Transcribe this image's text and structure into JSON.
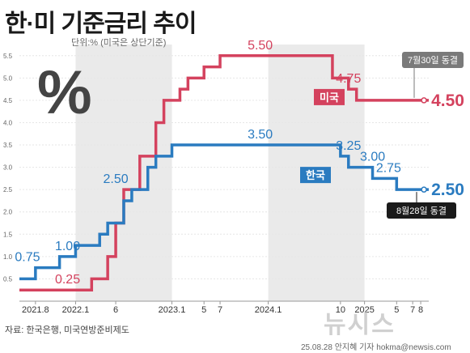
{
  "title": "한·미 기준금리 추이",
  "unit_note": "단위:% (미국은 상단기준)",
  "source": "자료: 한국은행, 미국연방준비제도",
  "credit": "25.08.28 안지혜 기자 hokma@newsis.com",
  "watermark": "뉴시스",
  "percent_symbol": "%",
  "colors": {
    "us": "#d4425e",
    "kr": "#2a7bc0",
    "shade": "#d9d9d9",
    "bg": "#ffffff"
  },
  "chart_data": {
    "type": "line",
    "step": true,
    "title": "한·미 기준금리 추이",
    "ylim": [
      0,
      5.75
    ],
    "yticks": [
      "0.5",
      "1.0",
      "1.5",
      "2.0",
      "2.5",
      "3.0",
      "3.5",
      "4.0",
      "4.5",
      "5.0",
      "5.5"
    ],
    "xticks": [
      "2021.8",
      "2022.1",
      "6",
      "2023.1",
      "5",
      "7",
      "2024.1",
      "10",
      "2025",
      "5",
      "7",
      "8"
    ],
    "xtick_positions": [
      "2021-08",
      "2022-01",
      "2022-06",
      "2023-01",
      "2023-05",
      "2023-07",
      "2024-01",
      "2024-10",
      "2025-01",
      "2025-05",
      "2025-07",
      "2025-08"
    ],
    "x_range": [
      "2021-06",
      "2025-09"
    ],
    "shaded_years": [
      "2022",
      "2024"
    ],
    "series": [
      {
        "name": "미국",
        "color": "#d4425e",
        "points": [
          [
            "2021-06",
            0.25
          ],
          [
            "2022-03",
            0.5
          ],
          [
            "2022-05",
            1.0
          ],
          [
            "2022-06",
            1.75
          ],
          [
            "2022-07",
            2.5
          ],
          [
            "2022-09",
            3.25
          ],
          [
            "2022-11",
            4.0
          ],
          [
            "2022-12",
            4.5
          ],
          [
            "2023-02",
            4.75
          ],
          [
            "2023-03",
            5.0
          ],
          [
            "2023-05",
            5.25
          ],
          [
            "2023-07",
            5.5
          ],
          [
            "2024-09",
            5.0
          ],
          [
            "2024-11",
            4.75
          ],
          [
            "2024-12",
            4.5
          ],
          [
            "2025-09",
            4.5
          ]
        ],
        "labels": [
          {
            "x": "2021-12",
            "y": 0.25,
            "text": "0.25"
          },
          {
            "x": "2023-12",
            "y": 5.5,
            "text": "5.50"
          },
          {
            "x": "2024-11",
            "y": 4.75,
            "text": "4.75"
          }
        ],
        "end_label": "4.50",
        "end_tag": "7월30일 동결"
      },
      {
        "name": "한국",
        "color": "#2a7bc0",
        "points": [
          [
            "2021-06",
            0.5
          ],
          [
            "2021-08",
            0.75
          ],
          [
            "2021-11",
            1.0
          ],
          [
            "2022-01",
            1.25
          ],
          [
            "2022-04",
            1.5
          ],
          [
            "2022-05",
            1.75
          ],
          [
            "2022-07",
            2.25
          ],
          [
            "2022-08",
            2.5
          ],
          [
            "2022-10",
            3.0
          ],
          [
            "2022-11",
            3.25
          ],
          [
            "2023-01",
            3.5
          ],
          [
            "2024-10",
            3.25
          ],
          [
            "2024-11",
            3.0
          ],
          [
            "2025-02",
            2.75
          ],
          [
            "2025-05",
            2.5
          ],
          [
            "2025-09",
            2.5
          ]
        ],
        "labels": [
          {
            "x": "2021-07",
            "y": 0.75,
            "text": "0.75"
          },
          {
            "x": "2021-12",
            "y": 1.0,
            "text": "1.00"
          },
          {
            "x": "2022-06",
            "y": 2.5,
            "text": "2.50"
          },
          {
            "x": "2023-12",
            "y": 3.5,
            "text": "3.50"
          },
          {
            "x": "2024-11",
            "y": 3.25,
            "text": "3.25"
          },
          {
            "x": "2025-02",
            "y": 3.0,
            "text": "3.00"
          },
          {
            "x": "2025-04",
            "y": 2.75,
            "text": "2.75"
          }
        ],
        "end_label": "2.50",
        "end_tag": "8월28일 동결"
      }
    ]
  }
}
